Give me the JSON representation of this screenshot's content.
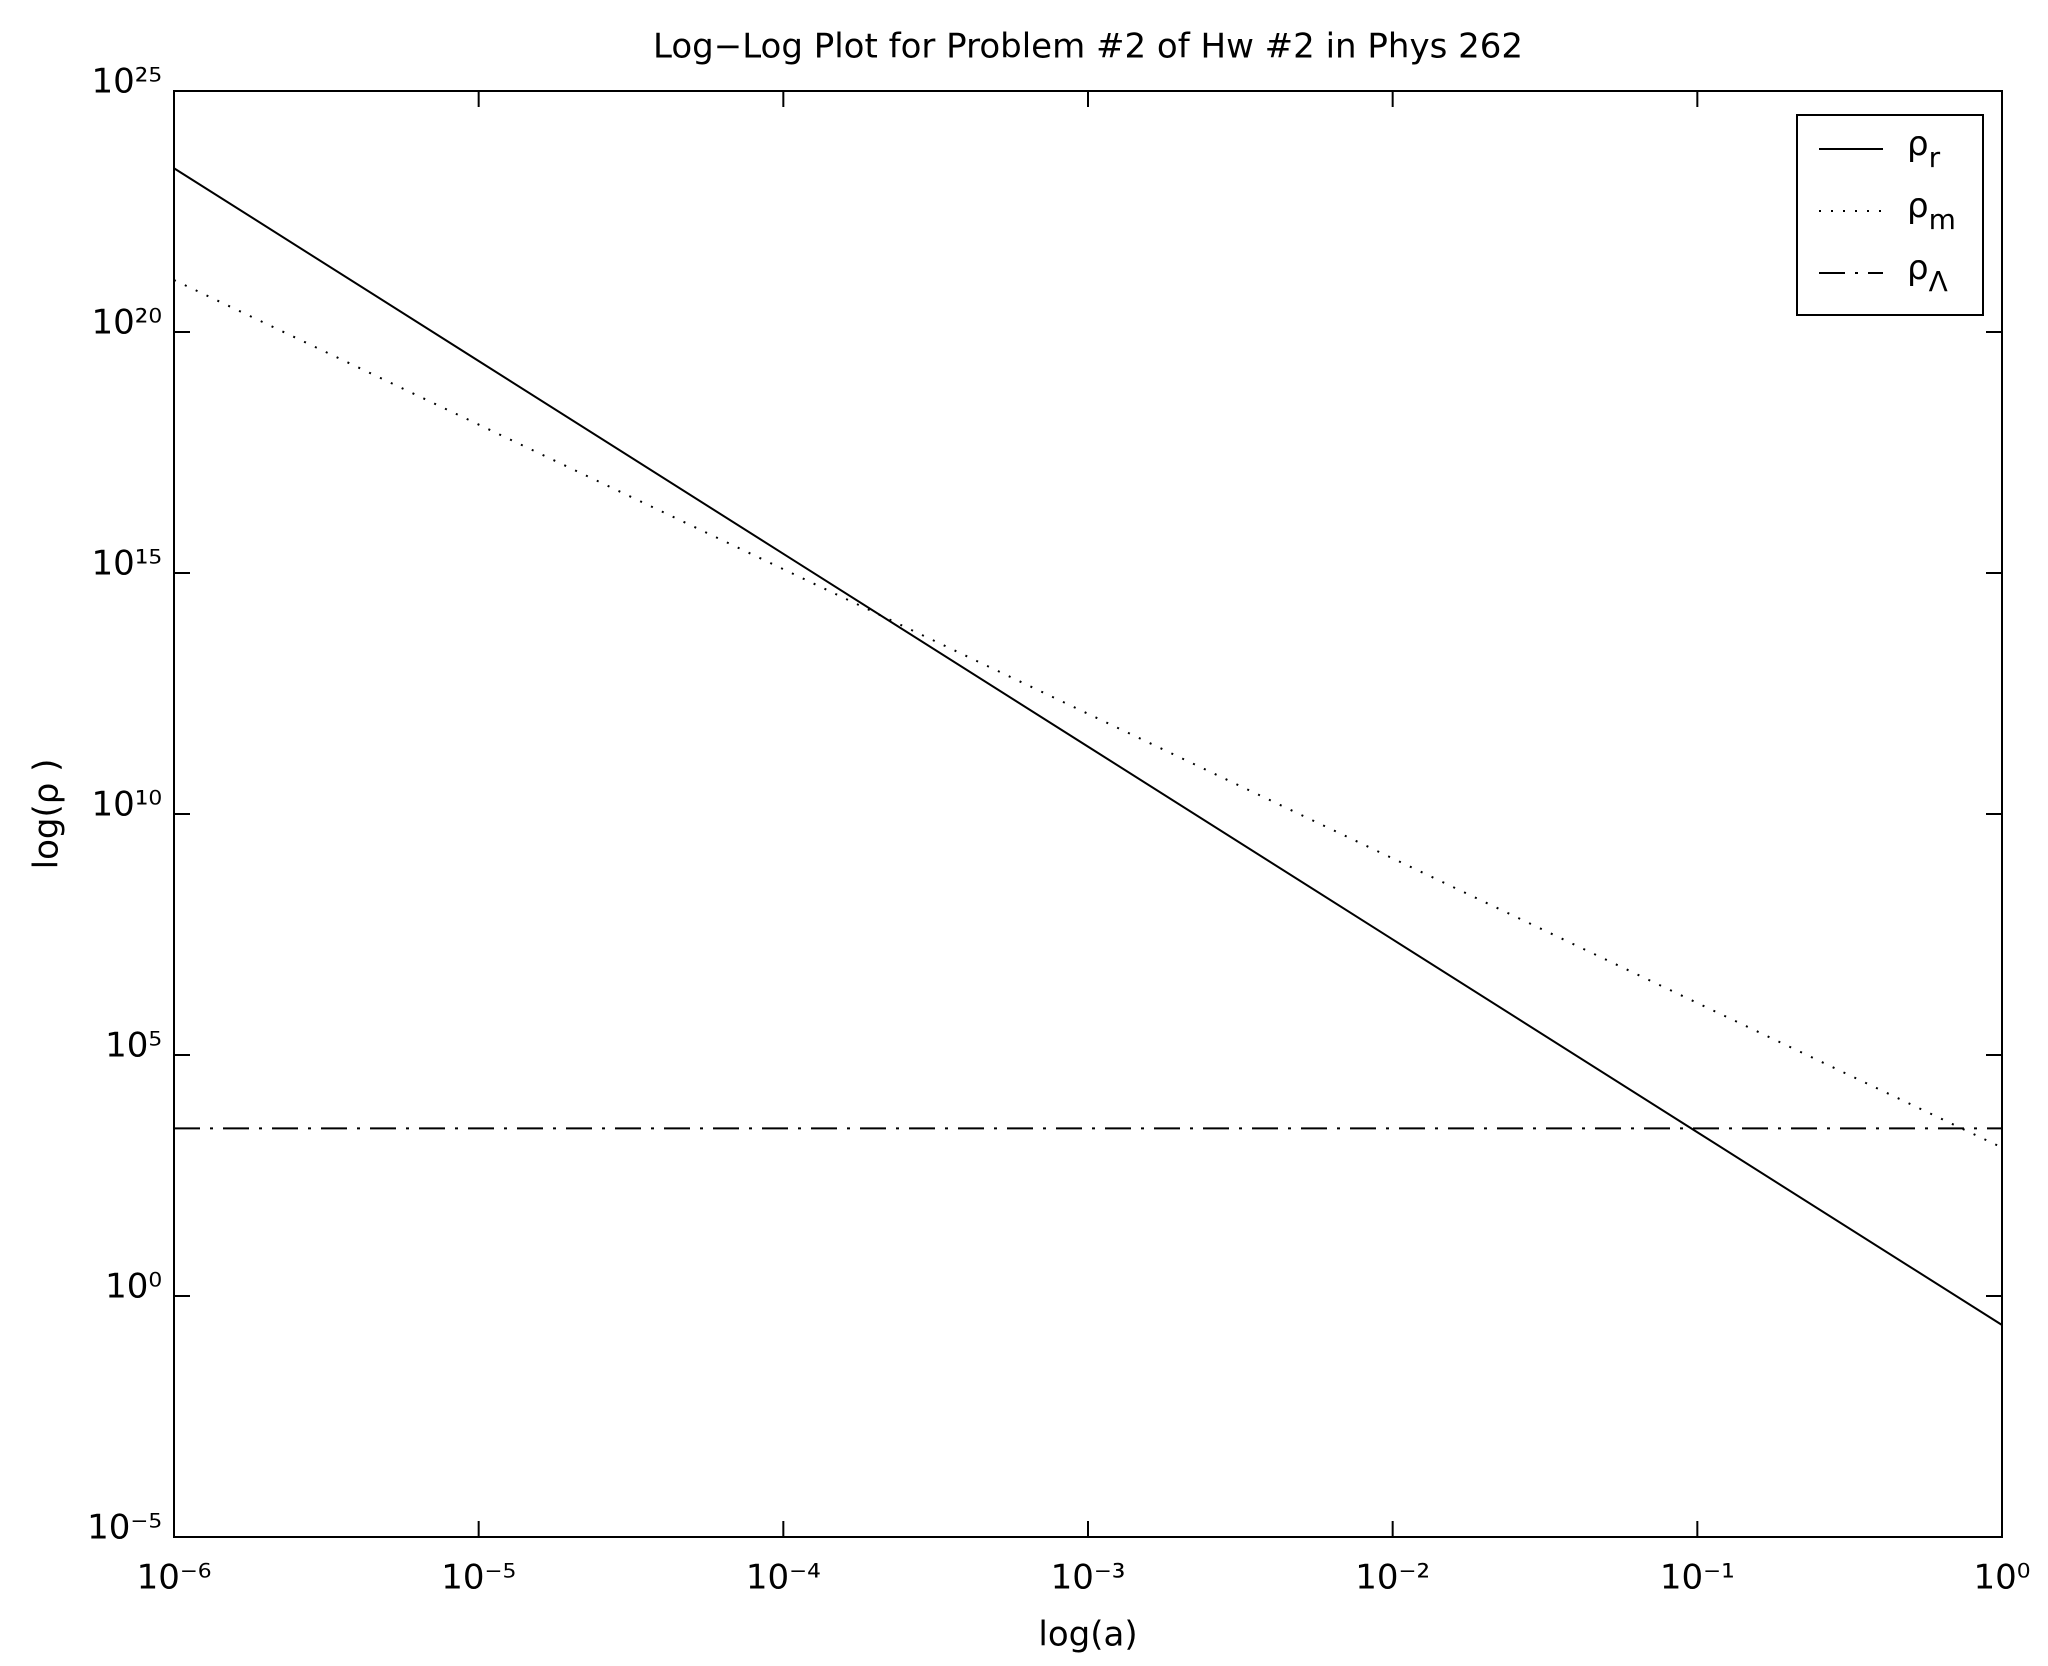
{
  "chart_data": {
    "type": "line",
    "title": "Log−Log Plot for Problem #2 of Hw #2 in Phys 262",
    "x_label": "log(a)",
    "y_label": "log(ρ )",
    "x": [
      1e-06,
      1e-05,
      0.0001,
      0.001,
      0.01,
      0.1,
      1
    ],
    "series": [
      {
        "name": "ρr",
        "color": "#000000",
        "style": "solid",
        "values": [
          2.5e+23,
          2.5e+19,
          2500000000000000.0,
          250000000000.0,
          25000000.0,
          2500,
          0.25
        ]
      },
      {
        "name": "ρm",
        "color": "#000000",
        "style": "dotted",
        "values": [
          1.2e+21,
          1.2e+18,
          1200000000000000.0,
          1200000000000.0,
          1200000000.0,
          1200000,
          1200
        ]
      },
      {
        "name": "ρΛ",
        "color": "#000000",
        "style": "dashdot",
        "values": [
          3000,
          3000,
          3000,
          3000,
          3000,
          3000,
          3000
        ]
      }
    ],
    "xlog": true,
    "ylog": true,
    "xlim": [
      1e-06,
      1
    ],
    "ylim": [
      1e-05,
      1e+25
    ],
    "xticks": [
      {
        "value": 1e-06,
        "label": "10⁻⁶"
      },
      {
        "value": 1e-05,
        "label": "10⁻⁵"
      },
      {
        "value": 0.0001,
        "label": "10⁻⁴"
      },
      {
        "value": 0.001,
        "label": "10⁻³"
      },
      {
        "value": 0.01,
        "label": "10⁻²"
      },
      {
        "value": 0.1,
        "label": "10⁻¹"
      },
      {
        "value": 1,
        "label": "10⁰"
      }
    ],
    "yticks": [
      {
        "value": 1e-05,
        "label": "10⁻⁵"
      },
      {
        "value": 1,
        "label": "10⁰"
      },
      {
        "value": 100000,
        "label": "10⁵"
      },
      {
        "value": 10000000000.0,
        "label": "10¹⁰"
      },
      {
        "value": 1000000000000000.0,
        "label": "10¹⁵"
      },
      {
        "value": 1e+20,
        "label": "10²⁰"
      },
      {
        "value": 1e+25,
        "label": "10²⁵"
      }
    ],
    "grid": false,
    "legend": "upper right"
  }
}
